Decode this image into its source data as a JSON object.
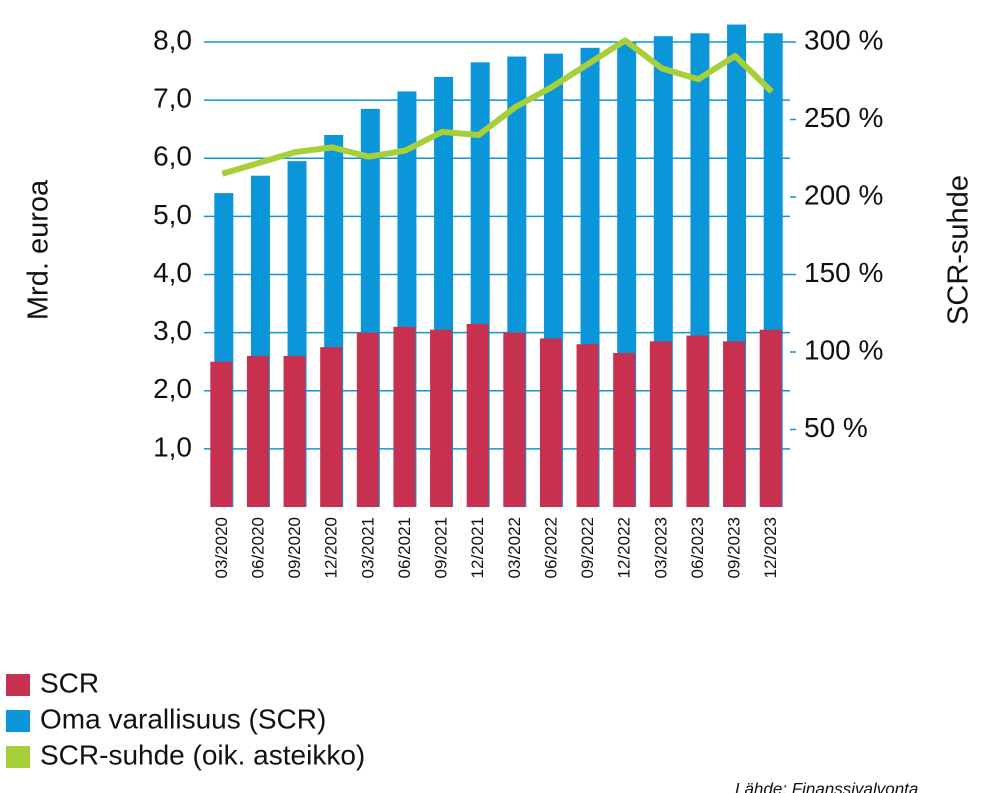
{
  "chart_data": {
    "type": "bar_line",
    "y_label": "Mrd. euroa",
    "y2_label": "SCR-suhde",
    "source": "Lähde: Finanssivalvonta",
    "categories": [
      "03/2020",
      "06/2020",
      "09/2020",
      "12/2020",
      "03/2021",
      "06/2021",
      "09/2021",
      "12/2021",
      "03/2022",
      "06/2022",
      "09/2022",
      "12/2022",
      "03/2023",
      "06/2023",
      "09/2023",
      "12/2023"
    ],
    "series": [
      {
        "name": "SCR",
        "color": "#c8304f",
        "type": "bar",
        "values": [
          2.5,
          2.6,
          2.6,
          2.75,
          3.0,
          3.1,
          3.05,
          3.15,
          3.0,
          2.9,
          2.8,
          2.65,
          2.85,
          2.95,
          2.85,
          3.05
        ]
      },
      {
        "name": "Oma varallisuus (SCR)",
        "color": "#0a96d8",
        "type": "bar",
        "values": [
          5.4,
          5.7,
          5.95,
          6.4,
          6.85,
          7.15,
          7.4,
          7.65,
          7.75,
          7.8,
          7.9,
          8.0,
          8.1,
          8.15,
          8.3,
          8.15
        ]
      },
      {
        "name": "SCR-suhde (oik. asteikko)",
        "color": "#a6cf3a",
        "type": "line",
        "axis": "y2",
        "values": [
          215,
          222,
          229,
          232,
          226,
          230,
          242,
          240,
          258,
          271,
          286,
          301,
          283,
          276,
          291,
          268
        ]
      }
    ],
    "ylim": [
      0,
      8
    ],
    "yticks": [
      {
        "value": 1,
        "label": "1,0"
      },
      {
        "value": 2,
        "label": "2,0"
      },
      {
        "value": 3,
        "label": "3,0"
      },
      {
        "value": 4,
        "label": "4,0"
      },
      {
        "value": 5,
        "label": "5,0"
      },
      {
        "value": 6,
        "label": "6,0"
      },
      {
        "value": 7,
        "label": "7,0"
      },
      {
        "value": 8,
        "label": "8,0"
      }
    ],
    "y2lim": [
      0,
      300
    ],
    "y2ticks": [
      {
        "value": 50,
        "label": "50 %"
      },
      {
        "value": 100,
        "label": "100 %"
      },
      {
        "value": 150,
        "label": "150 %"
      },
      {
        "value": 200,
        "label": "200 %"
      },
      {
        "value": 250,
        "label": "250 %"
      },
      {
        "value": 300,
        "label": "300 %"
      }
    ],
    "grid": true
  }
}
